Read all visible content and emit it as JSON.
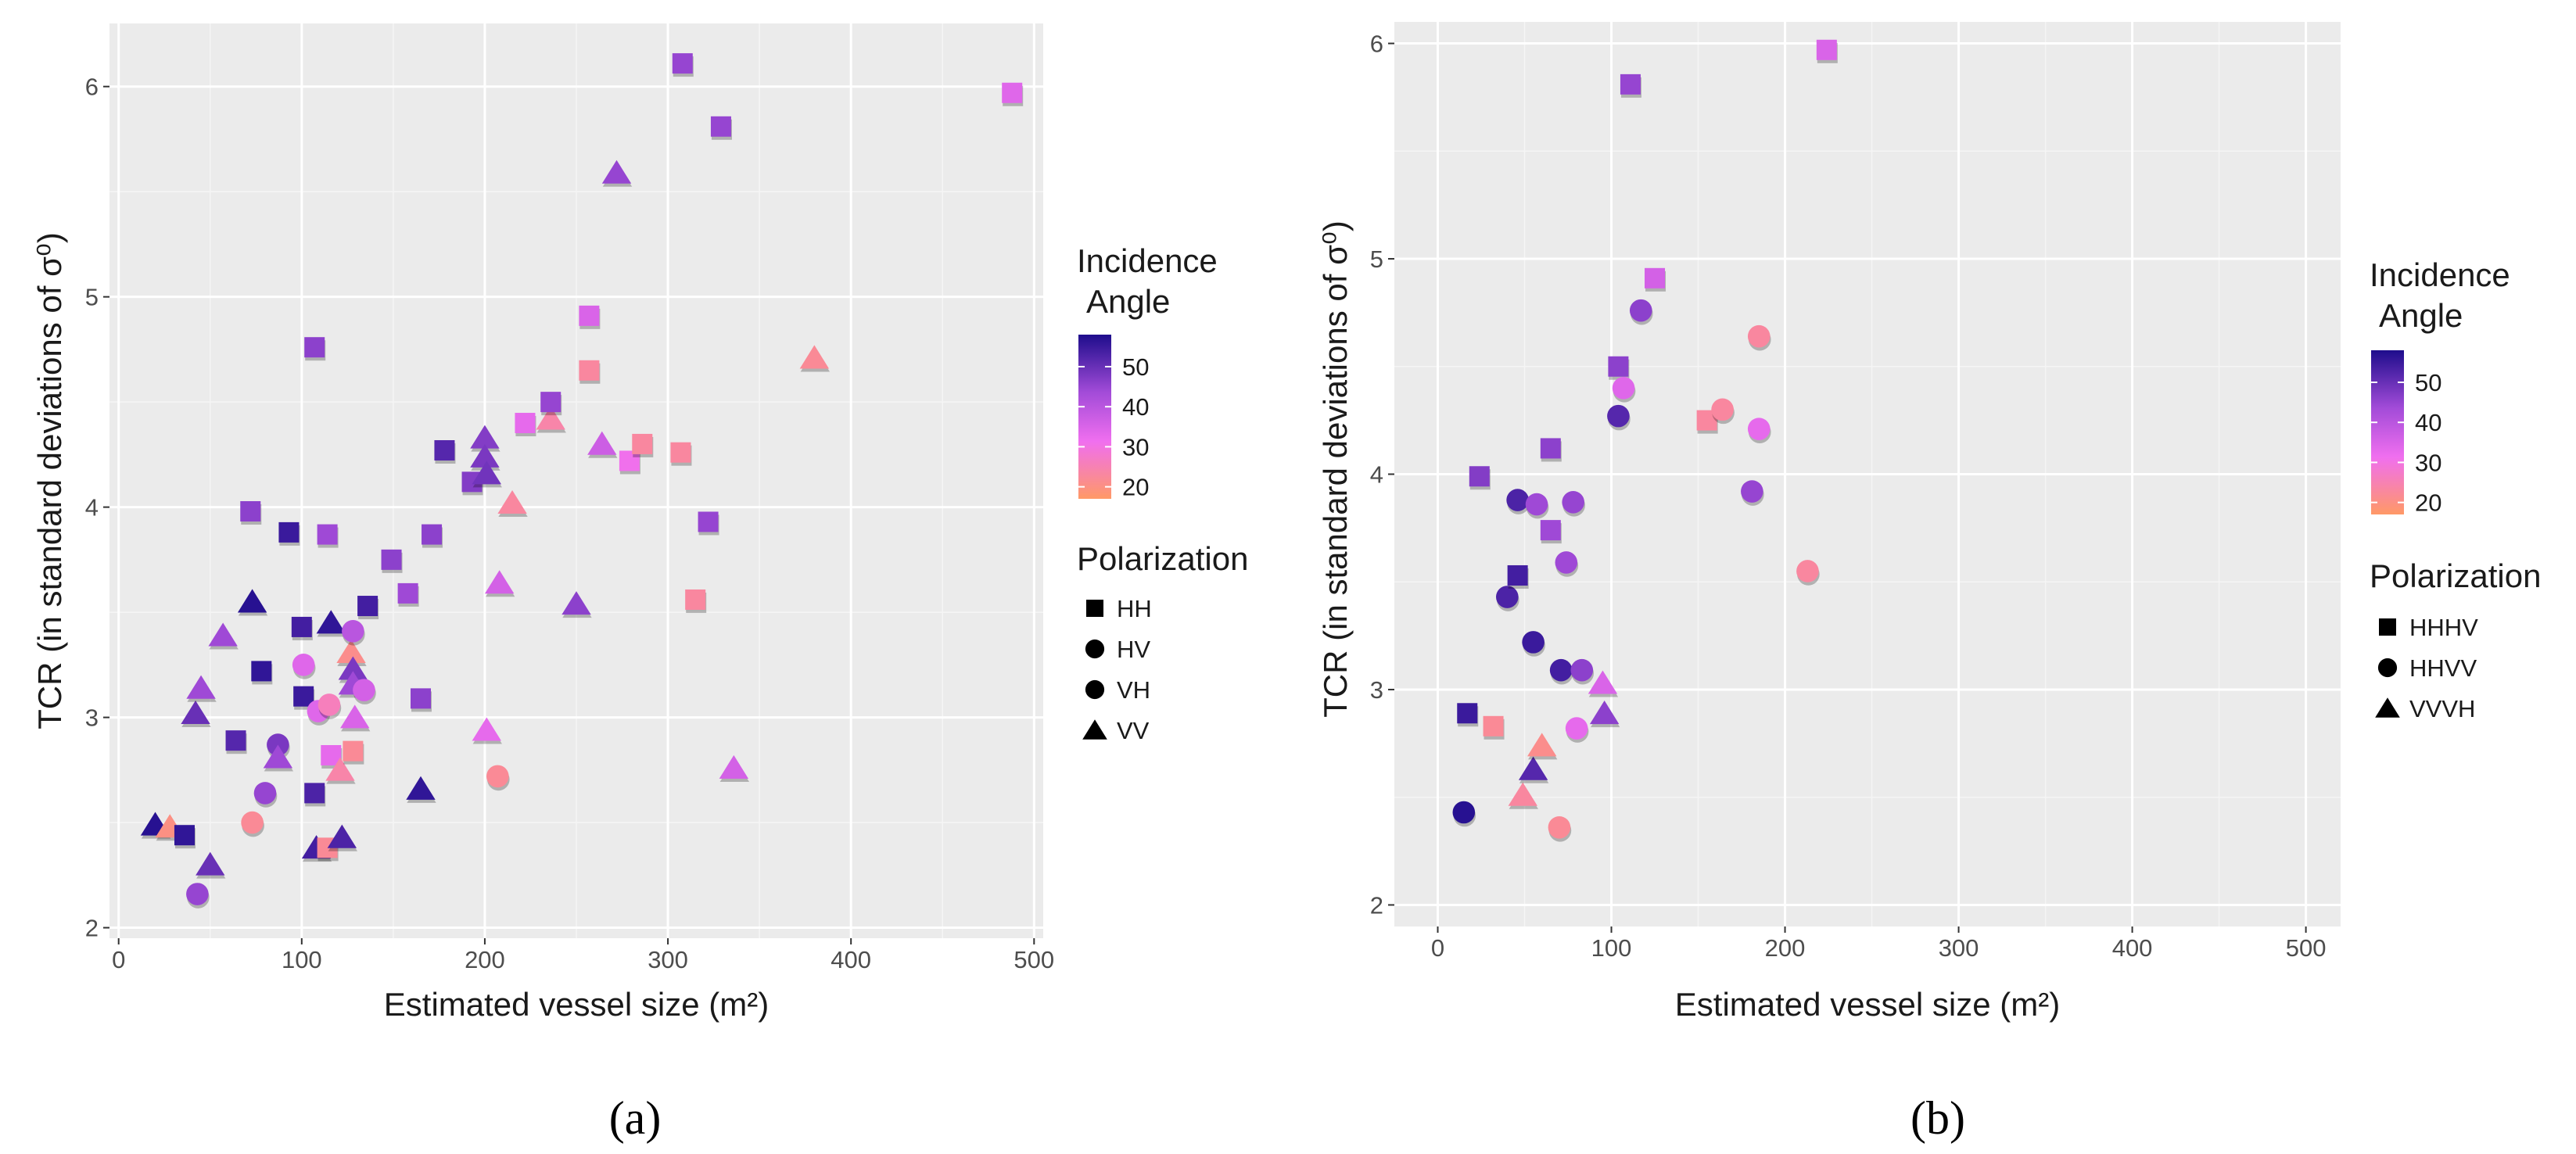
{
  "chart_data": [
    {
      "type": "scatter",
      "panel_label": "(a)",
      "xlabel": "Estimated vessel size (m²)",
      "ylabel": "TCR (in standard deviations of σ⁰)",
      "xlim": [
        -5,
        505
      ],
      "ylim": [
        1.95,
        6.3
      ],
      "x_ticks": [
        0,
        100,
        200,
        300,
        400,
        500
      ],
      "y_ticks": [
        2,
        3,
        4,
        5,
        6
      ],
      "x_tick_labels": [
        "0",
        "100",
        "200",
        "300",
        "400",
        "500"
      ],
      "y_tick_labels": [
        "2",
        "3",
        "4",
        "5",
        "6"
      ],
      "color_legend": {
        "title_line1": "Incidence",
        "title_line2": "Angle",
        "range": [
          17,
          58
        ],
        "ticks": [
          "20",
          "30",
          "40",
          "50"
        ]
      },
      "shape_legend": {
        "title": "Polarization",
        "entries": [
          {
            "label": "HH",
            "shape": "square"
          },
          {
            "label": "HV",
            "shape": "circle"
          },
          {
            "label": "VH",
            "shape": "circle"
          },
          {
            "label": "VV",
            "shape": "triangle"
          }
        ]
      },
      "points": [
        {
          "x": 20,
          "y": 2.49,
          "shape": "triangle",
          "angle": 57
        },
        {
          "x": 28,
          "y": 2.48,
          "shape": "triangle",
          "angle": 20
        },
        {
          "x": 36,
          "y": 2.44,
          "shape": "square",
          "angle": 56
        },
        {
          "x": 43,
          "y": 2.16,
          "shape": "circle",
          "angle": 45
        },
        {
          "x": 42,
          "y": 3.02,
          "shape": "triangle",
          "angle": 50
        },
        {
          "x": 45,
          "y": 3.14,
          "shape": "triangle",
          "angle": 44
        },
        {
          "x": 50,
          "y": 2.3,
          "shape": "triangle",
          "angle": 50
        },
        {
          "x": 57,
          "y": 3.39,
          "shape": "triangle",
          "angle": 44
        },
        {
          "x": 64,
          "y": 2.89,
          "shape": "square",
          "angle": 52
        },
        {
          "x": 72,
          "y": 3.98,
          "shape": "square",
          "angle": 46
        },
        {
          "x": 73,
          "y": 2.5,
          "shape": "circle",
          "angle": 22
        },
        {
          "x": 73,
          "y": 3.55,
          "shape": "triangle",
          "angle": 57
        },
        {
          "x": 78,
          "y": 3.22,
          "shape": "square",
          "angle": 56
        },
        {
          "x": 80,
          "y": 2.64,
          "shape": "circle",
          "angle": 45
        },
        {
          "x": 87,
          "y": 2.87,
          "shape": "circle",
          "angle": 48
        },
        {
          "x": 87,
          "y": 2.81,
          "shape": "triangle",
          "angle": 44
        },
        {
          "x": 93,
          "y": 3.88,
          "shape": "square",
          "angle": 55
        },
        {
          "x": 100,
          "y": 3.43,
          "shape": "square",
          "angle": 54
        },
        {
          "x": 101,
          "y": 3.25,
          "shape": "circle",
          "angle": 34
        },
        {
          "x": 101,
          "y": 3.1,
          "shape": "square",
          "angle": 55
        },
        {
          "x": 107,
          "y": 2.64,
          "shape": "square",
          "angle": 53
        },
        {
          "x": 107,
          "y": 4.76,
          "shape": "square",
          "angle": 46
        },
        {
          "x": 108,
          "y": 2.38,
          "shape": "triangle",
          "angle": 54
        },
        {
          "x": 109,
          "y": 3.03,
          "shape": "circle",
          "angle": 34
        },
        {
          "x": 114,
          "y": 3.87,
          "shape": "square",
          "angle": 44
        },
        {
          "x": 114,
          "y": 2.38,
          "shape": "square",
          "angle": 22
        },
        {
          "x": 115,
          "y": 3.06,
          "shape": "circle",
          "angle": 26
        },
        {
          "x": 116,
          "y": 2.82,
          "shape": "square",
          "angle": 33
        },
        {
          "x": 116,
          "y": 3.45,
          "shape": "triangle",
          "angle": 56
        },
        {
          "x": 121,
          "y": 2.75,
          "shape": "triangle",
          "angle": 24
        },
        {
          "x": 122,
          "y": 2.43,
          "shape": "triangle",
          "angle": 53
        },
        {
          "x": 127,
          "y": 3.31,
          "shape": "triangle",
          "angle": 21
        },
        {
          "x": 128,
          "y": 2.84,
          "shape": "square",
          "angle": 22
        },
        {
          "x": 128,
          "y": 3.41,
          "shape": "circle",
          "angle": 40
        },
        {
          "x": 128,
          "y": 3.23,
          "shape": "triangle",
          "angle": 48
        },
        {
          "x": 128,
          "y": 3.16,
          "shape": "triangle",
          "angle": 44
        },
        {
          "x": 129,
          "y": 3.0,
          "shape": "triangle",
          "angle": 35
        },
        {
          "x": 134,
          "y": 3.13,
          "shape": "circle",
          "angle": 36
        },
        {
          "x": 136,
          "y": 3.53,
          "shape": "square",
          "angle": 54
        },
        {
          "x": 149,
          "y": 3.75,
          "shape": "square",
          "angle": 46
        },
        {
          "x": 158,
          "y": 3.59,
          "shape": "square",
          "angle": 44
        },
        {
          "x": 165,
          "y": 3.09,
          "shape": "square",
          "angle": 46
        },
        {
          "x": 165,
          "y": 2.66,
          "shape": "triangle",
          "angle": 56
        },
        {
          "x": 171,
          "y": 3.87,
          "shape": "square",
          "angle": 46
        },
        {
          "x": 178,
          "y": 4.27,
          "shape": "square",
          "angle": 52
        },
        {
          "x": 193,
          "y": 4.12,
          "shape": "square",
          "angle": 47
        },
        {
          "x": 200,
          "y": 4.33,
          "shape": "triangle",
          "angle": 47
        },
        {
          "x": 200,
          "y": 4.24,
          "shape": "triangle",
          "angle": 48
        },
        {
          "x": 201,
          "y": 4.16,
          "shape": "triangle",
          "angle": 49
        },
        {
          "x": 201,
          "y": 2.94,
          "shape": "triangle",
          "angle": 33
        },
        {
          "x": 207,
          "y": 2.72,
          "shape": "circle",
          "angle": 22
        },
        {
          "x": 208,
          "y": 3.64,
          "shape": "triangle",
          "angle": 36
        },
        {
          "x": 215,
          "y": 4.02,
          "shape": "triangle",
          "angle": 23
        },
        {
          "x": 222,
          "y": 4.4,
          "shape": "square",
          "angle": 33
        },
        {
          "x": 236,
          "y": 4.42,
          "shape": "triangle",
          "angle": 24
        },
        {
          "x": 236,
          "y": 4.5,
          "shape": "square",
          "angle": 45
        },
        {
          "x": 250,
          "y": 3.54,
          "shape": "triangle",
          "angle": 46
        },
        {
          "x": 257,
          "y": 4.91,
          "shape": "square",
          "angle": 35
        },
        {
          "x": 257,
          "y": 4.65,
          "shape": "square",
          "angle": 23
        },
        {
          "x": 264,
          "y": 4.3,
          "shape": "triangle",
          "angle": 37
        },
        {
          "x": 272,
          "y": 5.59,
          "shape": "triangle",
          "angle": 45
        },
        {
          "x": 279,
          "y": 4.22,
          "shape": "square",
          "angle": 31
        },
        {
          "x": 286,
          "y": 4.3,
          "shape": "square",
          "angle": 23
        },
        {
          "x": 308,
          "y": 6.11,
          "shape": "square",
          "angle": 45
        },
        {
          "x": 307,
          "y": 4.26,
          "shape": "square",
          "angle": 23
        },
        {
          "x": 315,
          "y": 3.56,
          "shape": "square",
          "angle": 23
        },
        {
          "x": 322,
          "y": 3.93,
          "shape": "square",
          "angle": 45
        },
        {
          "x": 329,
          "y": 5.81,
          "shape": "square",
          "angle": 45
        },
        {
          "x": 336,
          "y": 2.76,
          "shape": "triangle",
          "angle": 36
        },
        {
          "x": 380,
          "y": 4.71,
          "shape": "triangle",
          "angle": 22
        },
        {
          "x": 488,
          "y": 5.97,
          "shape": "square",
          "angle": 34
        }
      ]
    },
    {
      "type": "scatter",
      "panel_label": "(b)",
      "xlabel": "Estimated vessel size (m²)",
      "ylabel": "TCR (in standard deviations of σ⁰)",
      "xlim": [
        -25,
        520
      ],
      "ylim": [
        1.9,
        6.1
      ],
      "x_ticks": [
        0,
        100,
        200,
        300,
        400,
        500
      ],
      "y_ticks": [
        2,
        3,
        4,
        5,
        6
      ],
      "x_tick_labels": [
        "0",
        "100",
        "200",
        "300",
        "400",
        "500"
      ],
      "y_tick_labels": [
        "2",
        "3",
        "4",
        "5",
        "6"
      ],
      "color_legend": {
        "title_line1": "Incidence",
        "title_line2": "Angle",
        "range": [
          17,
          58
        ],
        "ticks": [
          "20",
          "30",
          "40",
          "50"
        ]
      },
      "shape_legend": {
        "title": "Polarization",
        "entries": [
          {
            "label": "HHHV",
            "shape": "square"
          },
          {
            "label": "HHVV",
            "shape": "circle"
          },
          {
            "label": "VVVH",
            "shape": "triangle"
          }
        ]
      },
      "points": [
        {
          "x": 15,
          "y": 2.43,
          "shape": "circle",
          "angle": 57
        },
        {
          "x": 17,
          "y": 2.89,
          "shape": "square",
          "angle": 55
        },
        {
          "x": 24,
          "y": 3.99,
          "shape": "square",
          "angle": 47
        },
        {
          "x": 32,
          "y": 2.83,
          "shape": "square",
          "angle": 22
        },
        {
          "x": 40,
          "y": 3.43,
          "shape": "circle",
          "angle": 53
        },
        {
          "x": 46,
          "y": 3.88,
          "shape": "circle",
          "angle": 53
        },
        {
          "x": 46,
          "y": 3.53,
          "shape": "square",
          "angle": 54
        },
        {
          "x": 49,
          "y": 2.51,
          "shape": "triangle",
          "angle": 23
        },
        {
          "x": 55,
          "y": 3.22,
          "shape": "circle",
          "angle": 55
        },
        {
          "x": 55,
          "y": 2.63,
          "shape": "triangle",
          "angle": 52
        },
        {
          "x": 57,
          "y": 3.86,
          "shape": "circle",
          "angle": 44
        },
        {
          "x": 60,
          "y": 2.74,
          "shape": "triangle",
          "angle": 21
        },
        {
          "x": 65,
          "y": 4.12,
          "shape": "square",
          "angle": 46
        },
        {
          "x": 65,
          "y": 3.74,
          "shape": "square",
          "angle": 44
        },
        {
          "x": 70,
          "y": 2.36,
          "shape": "circle",
          "angle": 22
        },
        {
          "x": 71,
          "y": 3.09,
          "shape": "circle",
          "angle": 54
        },
        {
          "x": 74,
          "y": 3.59,
          "shape": "circle",
          "angle": 44
        },
        {
          "x": 78,
          "y": 3.87,
          "shape": "circle",
          "angle": 45
        },
        {
          "x": 80,
          "y": 2.82,
          "shape": "circle",
          "angle": 33
        },
        {
          "x": 83,
          "y": 3.09,
          "shape": "circle",
          "angle": 46
        },
        {
          "x": 95,
          "y": 3.03,
          "shape": "triangle",
          "angle": 35
        },
        {
          "x": 96,
          "y": 2.89,
          "shape": "triangle",
          "angle": 46
        },
        {
          "x": 104,
          "y": 4.27,
          "shape": "circle",
          "angle": 52
        },
        {
          "x": 104,
          "y": 4.5,
          "shape": "square",
          "angle": 46
        },
        {
          "x": 107,
          "y": 4.4,
          "shape": "circle",
          "angle": 34
        },
        {
          "x": 111,
          "y": 5.81,
          "shape": "square",
          "angle": 45
        },
        {
          "x": 117,
          "y": 4.76,
          "shape": "circle",
          "angle": 46
        },
        {
          "x": 125,
          "y": 4.91,
          "shape": "square",
          "angle": 36
        },
        {
          "x": 155,
          "y": 4.25,
          "shape": "square",
          "angle": 23
        },
        {
          "x": 164,
          "y": 4.3,
          "shape": "circle",
          "angle": 23
        },
        {
          "x": 181,
          "y": 3.92,
          "shape": "circle",
          "angle": 45
        },
        {
          "x": 185,
          "y": 4.64,
          "shape": "circle",
          "angle": 23
        },
        {
          "x": 185,
          "y": 4.21,
          "shape": "circle",
          "angle": 33
        },
        {
          "x": 213,
          "y": 3.55,
          "shape": "circle",
          "angle": 23
        },
        {
          "x": 224,
          "y": 5.97,
          "shape": "square",
          "angle": 35
        }
      ]
    }
  ]
}
